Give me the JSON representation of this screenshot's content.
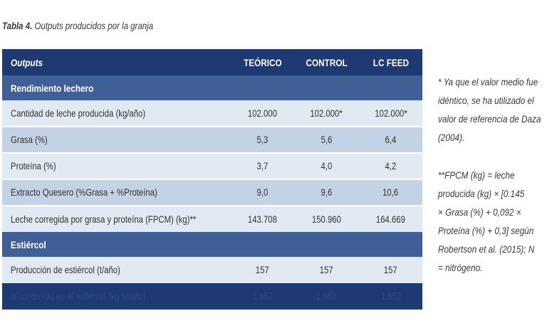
{
  "caption": {
    "prefix": "Tabla 4.",
    "text": " Outputs producidos por la granja"
  },
  "table": {
    "headers": [
      "Outputs",
      "TEÓRICO",
      "CONTROL",
      "LC FEED"
    ],
    "sections": [
      {
        "title": "Rendimiento lechero",
        "rows": [
          [
            "Cantidad de leche producida (kg/año)",
            "102.000",
            "102.000*",
            "102.000*"
          ],
          [
            "Grasa (%)",
            "5,3",
            "5,6",
            "6,4"
          ],
          [
            "Proteína (%)",
            "3,7",
            "4,0",
            "4,2"
          ],
          [
            "Extracto Quesero (%Grasa + %Proteína)",
            "9,0",
            "9,6",
            "10,6"
          ],
          [
            "Leche corregida por grasa y proteína (FPCM) (kg)**",
            "143.708",
            "150.960",
            "164.669"
          ]
        ]
      },
      {
        "title": "Estiércol",
        "rows": [
          [
            "Producción de estiércol (t/año)",
            "157",
            "157",
            "157"
          ],
          [
            "N contenido en el estiércol (kg N/año)",
            "1.652",
            "1.652",
            "1.652"
          ]
        ]
      }
    ]
  },
  "notes": {
    "note1": [
      "* Ya que el valor medio fue",
      "idéntico, se ha utilizado el",
      "valor de referencia de Daza",
      "(2004)."
    ],
    "note2": [
      "**FPCM (kg) = leche",
      "producida (kg) × [0.145",
      "× Grasa (%) + 0,092 ×",
      "Proteína (%) + 0,3] según",
      "Robertson et al. (2015); N",
      "= nitrógeno."
    ]
  }
}
